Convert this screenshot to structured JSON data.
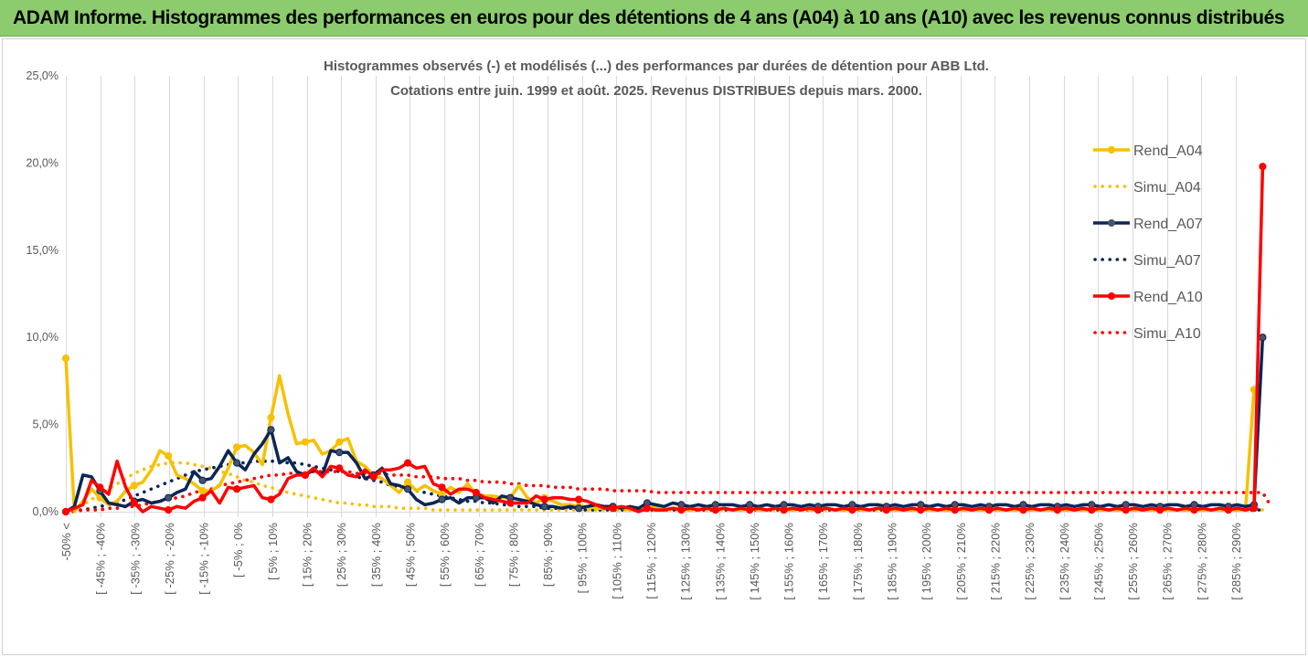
{
  "banner": {
    "title": "ADAM Informe. Histogrammes des performances en euros pour des détentions de 4 ans (A04) à 10 ans (A10) avec les revenus connus distribués"
  },
  "colors": {
    "banner_bg": "#8ccc6e",
    "A04": "#f7c000",
    "A07": "#0b2556",
    "A10": "#ff0000",
    "marker_A07": "#44546a"
  },
  "chart_data": {
    "type": "line",
    "title": "Histogrammes observés (-) et modélisés (...) des performances par durées de détention pour ABB Ltd.",
    "subtitle": "Cotations entre juin. 1999 et août. 2025. Revenus DISTRIBUES depuis mars. 2000.",
    "ylim": [
      0,
      25
    ],
    "yticks": [
      "0,0%",
      "5,0%",
      "10,0%",
      "15,0%",
      "20,0%",
      "25,0%"
    ],
    "grid_x": true,
    "grid_y": false,
    "legend_position": "right",
    "xlabels": [
      "-50% <",
      "[ -45% ; -40%",
      "[ -35% ; -30%",
      "[ -25% ; -20%",
      "[ -15% ; -10%",
      "[ -5% ; 0%",
      "[ 5% ; 10%",
      "[ 15% ; 20%",
      "[ 25% ; 30%",
      "[ 35% ; 40%",
      "[ 45% ; 50%",
      "[ 55% ; 60%",
      "[ 65% ; 70%",
      "[ 75% ; 80%",
      "[ 85% ; 90%",
      "[ 95% ; 100%",
      "[ 105% ; 110%",
      "[ 115% ; 120%",
      "[ 125% ; 130%",
      "[ 135% ; 140%",
      "[ 145% ; 150%",
      "[ 155% ; 160%",
      "[ 165% ; 170%",
      "[ 175% ; 180%",
      "[ 185% ; 190%",
      "[ 195% ; 200%",
      "[ 205% ; 210%",
      "[ 215% ; 220%",
      "[ 225% ; 230%",
      "[ 235% ; 240%",
      "[ 245% ; 250%",
      "[ 255% ; 260%",
      "[ 265% ; 270%",
      "[ 275% ; 280%",
      "[ 285% ; 290%"
    ],
    "series": [
      {
        "name": "Rend_A04",
        "style": "solid",
        "values": [
          8.8,
          0.0,
          0.6,
          1.3,
          0.8,
          0.4,
          0.6,
          1.2,
          1.5,
          1.7,
          2.4,
          3.5,
          3.2,
          2.1,
          1.9,
          1.6,
          1.2,
          1.2,
          1.5,
          2.5,
          3.7,
          3.8,
          3.4,
          2.7,
          5.4,
          7.8,
          5.6,
          3.9,
          4.0,
          4.1,
          3.3,
          3.5,
          4.0,
          4.2,
          2.9,
          2.6,
          2.1,
          1.9,
          1.5,
          1.1,
          1.7,
          1.2,
          1.5,
          1.2,
          1.0,
          1.4,
          1.1,
          1.6,
          1.0,
          0.9,
          0.9,
          0.8,
          0.8,
          1.5,
          0.8,
          0.5,
          0.8,
          0.6,
          0.4,
          0.4,
          0.3,
          0.3,
          0.2,
          0.2,
          0.3,
          0.2,
          0.1,
          0.2,
          0.2,
          0.3,
          0.1,
          0.2,
          0.2,
          0.1,
          0.2,
          0.2,
          0.1,
          0.2,
          0.1,
          0.1,
          0.2,
          0.1,
          0.1,
          0.2,
          0.1,
          0.1,
          0.2,
          0.1,
          0.1,
          0.2,
          0.1,
          0.1,
          0.2,
          0.1,
          0.1,
          0.2,
          0.1,
          0.1,
          0.1,
          0.1,
          0.1,
          0.1,
          0.1,
          0.1,
          0.1,
          0.1,
          0.1,
          0.1,
          0.1,
          0.1,
          0.1,
          0.1,
          0.1,
          0.1,
          0.1,
          0.1,
          0.1,
          0.1,
          0.1,
          0.1,
          0.1,
          0.1,
          0.1,
          0.1,
          0.1,
          0.1,
          0.1,
          0.1,
          0.1,
          0.1,
          0.1,
          0.1,
          0.1,
          0.1,
          0.1,
          0.1,
          0.1,
          0.1,
          0.1,
          7.0
        ]
      },
      {
        "name": "Simu_A04",
        "style": "dotted",
        "values": [
          0.1,
          0.2,
          0.4,
          0.7,
          1.0,
          1.3,
          1.6,
          1.9,
          2.2,
          2.4,
          2.6,
          2.7,
          2.8,
          2.8,
          2.8,
          2.7,
          2.6,
          2.5,
          2.3,
          2.2,
          2.0,
          1.8,
          1.7,
          1.5,
          1.4,
          1.2,
          1.1,
          1.0,
          0.9,
          0.8,
          0.7,
          0.6,
          0.5,
          0.5,
          0.4,
          0.4,
          0.3,
          0.3,
          0.3,
          0.2,
          0.2,
          0.2,
          0.2,
          0.1,
          0.1,
          0.1,
          0.1,
          0.1,
          0.1,
          0.1,
          0.1,
          0.1,
          0.1,
          0.1,
          0.1,
          0.1,
          0.1,
          0.1,
          0.1,
          0.1,
          0.1,
          0.1,
          0.1,
          0.1,
          0.1,
          0.1,
          0.1,
          0.1,
          0.1,
          0.1,
          0.1,
          0.1,
          0.1,
          0.1,
          0.1,
          0.1,
          0.1,
          0.1,
          0.1,
          0.1,
          0.1,
          0.1,
          0.1,
          0.1,
          0.1,
          0.1,
          0.1,
          0.1,
          0.1,
          0.1,
          0.1,
          0.1,
          0.1,
          0.1,
          0.1,
          0.1,
          0.1,
          0.1,
          0.1,
          0.1,
          0.1,
          0.1,
          0.1,
          0.1,
          0.1,
          0.1,
          0.1,
          0.1,
          0.1,
          0.1,
          0.1,
          0.1,
          0.1,
          0.1,
          0.1,
          0.1,
          0.1,
          0.1,
          0.1,
          0.1,
          0.1,
          0.1,
          0.1,
          0.1,
          0.1,
          0.1,
          0.1,
          0.1,
          0.1,
          0.1,
          0.1,
          0.1,
          0.1,
          0.1,
          0.1,
          0.1,
          0.1,
          0.1,
          0.1,
          0.1,
          0.1
        ]
      },
      {
        "name": "Rend_A07",
        "style": "solid",
        "values": [
          0.0,
          0.3,
          2.1,
          2.0,
          1.2,
          0.5,
          0.4,
          0.3,
          0.6,
          0.7,
          0.5,
          0.6,
          0.8,
          1.1,
          1.3,
          2.3,
          1.8,
          1.9,
          2.6,
          3.5,
          2.8,
          2.4,
          3.3,
          3.9,
          4.7,
          2.8,
          3.1,
          2.3,
          2.1,
          2.4,
          2.1,
          3.5,
          3.4,
          3.4,
          2.8,
          1.9,
          2.1,
          2.5,
          1.6,
          1.5,
          1.3,
          0.7,
          0.4,
          0.5,
          0.7,
          0.8,
          0.5,
          0.8,
          0.8,
          0.8,
          0.5,
          0.9,
          0.8,
          0.7,
          0.6,
          0.4,
          0.3,
          0.3,
          0.2,
          0.3,
          0.2,
          0.3,
          0.4,
          0.3,
          0.3,
          0.2,
          0.3,
          0.2,
          0.5,
          0.4,
          0.3,
          0.5,
          0.4,
          0.3,
          0.4,
          0.3,
          0.4,
          0.4,
          0.4,
          0.3,
          0.4,
          0.3,
          0.4,
          0.3,
          0.4,
          0.4,
          0.3,
          0.4,
          0.3,
          0.4,
          0.4,
          0.3,
          0.4,
          0.3,
          0.4,
          0.4,
          0.3,
          0.4,
          0.3,
          0.4,
          0.4,
          0.3,
          0.4,
          0.3,
          0.4,
          0.4,
          0.3,
          0.4,
          0.3,
          0.4,
          0.4,
          0.3,
          0.4,
          0.3,
          0.4,
          0.4,
          0.3,
          0.4,
          0.3,
          0.4,
          0.4,
          0.3,
          0.4,
          0.3,
          0.4,
          0.4,
          0.3,
          0.4,
          0.3,
          0.4,
          0.4,
          0.3,
          0.4,
          0.3,
          0.4,
          0.4,
          0.3,
          0.4,
          0.3,
          0.4,
          10.0
        ]
      },
      {
        "name": "Simu_A07",
        "style": "dotted",
        "values": [
          0.0,
          0.1,
          0.1,
          0.2,
          0.3,
          0.4,
          0.5,
          0.7,
          0.9,
          1.1,
          1.3,
          1.5,
          1.7,
          1.9,
          2.1,
          2.3,
          2.4,
          2.5,
          2.6,
          2.7,
          2.8,
          2.8,
          2.9,
          2.9,
          2.9,
          2.9,
          2.8,
          2.8,
          2.7,
          2.6,
          2.5,
          2.4,
          2.3,
          2.2,
          2.0,
          1.9,
          1.8,
          1.7,
          1.5,
          1.4,
          1.3,
          1.2,
          1.1,
          1.0,
          0.9,
          0.8,
          0.7,
          0.6,
          0.6,
          0.5,
          0.5,
          0.4,
          0.4,
          0.3,
          0.3,
          0.3,
          0.2,
          0.2,
          0.2,
          0.2,
          0.1,
          0.1,
          0.1,
          0.1,
          0.1,
          0.1,
          0.1,
          0.1,
          0.1,
          0.1,
          0.1,
          0.1,
          0.1,
          0.1,
          0.1,
          0.1,
          0.1,
          0.1,
          0.1,
          0.1,
          0.1,
          0.1,
          0.1,
          0.1,
          0.1,
          0.1,
          0.1,
          0.1,
          0.1,
          0.1,
          0.1,
          0.1,
          0.1,
          0.1,
          0.1,
          0.1,
          0.1,
          0.1,
          0.1,
          0.1,
          0.1,
          0.1,
          0.1,
          0.1,
          0.1,
          0.1,
          0.1,
          0.1,
          0.1,
          0.1,
          0.1,
          0.1,
          0.1,
          0.1,
          0.1,
          0.1,
          0.1,
          0.1,
          0.1,
          0.1,
          0.1,
          0.1,
          0.1,
          0.1,
          0.1,
          0.1,
          0.1,
          0.1,
          0.1,
          0.1,
          0.1,
          0.1,
          0.1,
          0.1,
          0.1,
          0.1,
          0.1,
          0.1,
          0.1,
          0.1,
          0.1
        ]
      },
      {
        "name": "Rend_A10",
        "style": "solid",
        "values": [
          0.0,
          0.2,
          0.4,
          1.8,
          1.4,
          1.0,
          2.9,
          1.4,
          0.5,
          0.0,
          0.3,
          0.2,
          0.1,
          0.3,
          0.2,
          0.6,
          0.8,
          1.2,
          0.5,
          1.4,
          1.3,
          1.4,
          1.5,
          0.8,
          0.7,
          1.0,
          1.9,
          2.1,
          2.1,
          2.5,
          2.0,
          2.6,
          2.5,
          2.1,
          2.0,
          2.4,
          2.0,
          2.4,
          2.4,
          2.5,
          2.8,
          2.5,
          2.6,
          1.6,
          1.4,
          1.0,
          1.3,
          1.3,
          1.1,
          0.8,
          0.7,
          0.6,
          0.5,
          0.5,
          0.5,
          0.9,
          0.7,
          0.8,
          0.8,
          0.7,
          0.7,
          0.6,
          0.4,
          0.2,
          0.2,
          0.3,
          0.2,
          0.0,
          0.2,
          0.1,
          0.1,
          0.2,
          0.1,
          0.2,
          0.1,
          0.2,
          0.1,
          0.2,
          0.1,
          0.2,
          0.1,
          0.2,
          0.1,
          0.2,
          0.1,
          0.2,
          0.1,
          0.2,
          0.1,
          0.2,
          0.1,
          0.2,
          0.1,
          0.2,
          0.1,
          0.2,
          0.1,
          0.2,
          0.1,
          0.2,
          0.1,
          0.2,
          0.1,
          0.2,
          0.1,
          0.2,
          0.1,
          0.2,
          0.1,
          0.2,
          0.1,
          0.2,
          0.1,
          0.2,
          0.1,
          0.2,
          0.1,
          0.2,
          0.1,
          0.2,
          0.1,
          0.2,
          0.1,
          0.2,
          0.1,
          0.2,
          0.1,
          0.2,
          0.1,
          0.2,
          0.1,
          0.2,
          0.1,
          0.2,
          0.1,
          0.2,
          0.1,
          0.2,
          0.1,
          0.2,
          19.8
        ]
      },
      {
        "name": "Simu_A10",
        "style": "dotted",
        "values": [
          0.0,
          0.0,
          0.1,
          0.1,
          0.1,
          0.2,
          0.2,
          0.3,
          0.3,
          0.4,
          0.5,
          0.6,
          0.7,
          0.8,
          0.9,
          1.1,
          1.2,
          1.3,
          1.5,
          1.6,
          1.7,
          1.8,
          1.9,
          2.0,
          2.1,
          2.1,
          2.2,
          2.2,
          2.2,
          2.3,
          2.3,
          2.3,
          2.3,
          2.3,
          2.2,
          2.2,
          2.2,
          2.2,
          2.1,
          2.1,
          2.1,
          2.0,
          2.0,
          2.0,
          1.9,
          1.9,
          1.9,
          1.8,
          1.8,
          1.7,
          1.7,
          1.7,
          1.6,
          1.6,
          1.5,
          1.5,
          1.5,
          1.4,
          1.4,
          1.4,
          1.3,
          1.3,
          1.3,
          1.3,
          1.2,
          1.2,
          1.2,
          1.2,
          1.2,
          1.1,
          1.1,
          1.1,
          1.1,
          1.1,
          1.1,
          1.1,
          1.1,
          1.1,
          1.1,
          1.1,
          1.1,
          1.1,
          1.1,
          1.1,
          1.1,
          1.1,
          1.1,
          1.1,
          1.1,
          1.1,
          1.1,
          1.1,
          1.1,
          1.1,
          1.1,
          1.1,
          1.1,
          1.1,
          1.1,
          1.1,
          1.1,
          1.1,
          1.1,
          1.1,
          1.1,
          1.1,
          1.1,
          1.1,
          1.1,
          1.1,
          1.1,
          1.1,
          1.1,
          1.1,
          1.1,
          1.1,
          1.1,
          1.1,
          1.1,
          1.1,
          1.1,
          1.1,
          1.1,
          1.1,
          1.1,
          1.1,
          1.1,
          1.1,
          1.1,
          1.1,
          1.1,
          1.1,
          1.1,
          1.1,
          1.1,
          1.1,
          1.1,
          1.1,
          1.1,
          1.1,
          1.1,
          0.3
        ]
      }
    ]
  }
}
